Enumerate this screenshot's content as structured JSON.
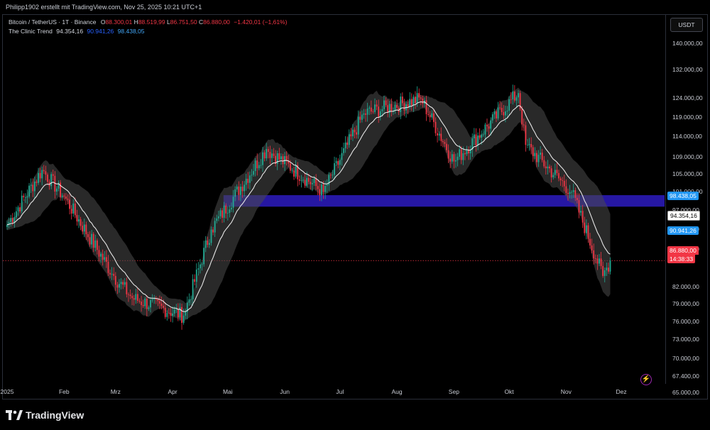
{
  "header": {
    "caption": "Philipp1902 erstellt mit TradingView.com, Nov 25, 2025 10:21 UTC+1"
  },
  "legend": {
    "symbol": "Bitcoin / TetherUS · 1T · Binance",
    "o_label": "O",
    "o_value": "88.300,01",
    "h_label": "H",
    "h_value": "88.519,99",
    "l_label": "L",
    "l_value": "86.751,50",
    "c_label": "C",
    "c_value": "86.880,00",
    "change": "−1.420,01 (−1,61%)",
    "indicator_name": "The Clinic Trend",
    "indicator_value1": "94.354,16",
    "indicator_value2": "90.941,26",
    "indicator_value3": "98.438,05"
  },
  "toolbar": {
    "currency_button": "USDT"
  },
  "price_tags": {
    "zone_level": "98.438,05",
    "trend_value": "94.354,16",
    "lower_band": "90.941,26",
    "last_price": "86.880,00",
    "countdown": "14:38:33"
  },
  "colors": {
    "up": "#22ab94",
    "down": "#f23645",
    "zone": "#2a1ab5",
    "trend_line": "#e6e6e6",
    "band_fill": "#4a4a4a",
    "tag_blue": "#2196f3",
    "tag_red": "#f23645"
  },
  "icons": {
    "alert": "lightning-icon",
    "logo": "tradingview-logo-icon"
  },
  "brand": {
    "name": "TradingView"
  },
  "chart_data": {
    "type": "candlestick",
    "title": "Bitcoin / TetherUS · 1T · Binance",
    "y_axis": {
      "scale": "log",
      "ticks": [
        "140.000,00",
        "132.000,00",
        "124.000,00",
        "119.000,00",
        "114.000,00",
        "109.000,00",
        "105.000,00",
        "101.000,00",
        "97.000,00",
        "93.000,00",
        "89.000,00",
        "82.000,00",
        "79.000,00",
        "76.000,00",
        "73.000,00",
        "70.000,00",
        "67.400,00",
        "65.000,00"
      ],
      "tick_values": [
        140000,
        132000,
        124000,
        119000,
        114000,
        109000,
        105000,
        101000,
        97000,
        93000,
        89000,
        82000,
        79000,
        76000,
        73000,
        70000,
        67400,
        65000
      ]
    },
    "x_axis": {
      "ticks": [
        "2025",
        "Feb",
        "Mrz",
        "Apr",
        "Mai",
        "Jun",
        "Jul",
        "Aug",
        "Sep",
        "Okt",
        "Nov",
        "Dez"
      ]
    },
    "zone": {
      "low": 97800,
      "high": 100300
    },
    "last_price": 86880,
    "key_closes": [
      {
        "date": "2025-01-01",
        "close": 94000
      },
      {
        "date": "2025-01-20",
        "close": 106000
      },
      {
        "date": "2025-02-01",
        "close": 100000
      },
      {
        "date": "2025-02-28",
        "close": 84000
      },
      {
        "date": "2025-03-10",
        "close": 80000
      },
      {
        "date": "2025-04-07",
        "close": 77000
      },
      {
        "date": "2025-04-22",
        "close": 93000
      },
      {
        "date": "2025-05-22",
        "close": 111000
      },
      {
        "date": "2025-06-22",
        "close": 101000
      },
      {
        "date": "2025-07-14",
        "close": 120000
      },
      {
        "date": "2025-08-14",
        "close": 124000
      },
      {
        "date": "2025-09-01",
        "close": 108000
      },
      {
        "date": "2025-10-06",
        "close": 125500
      },
      {
        "date": "2025-10-10",
        "close": 112000
      },
      {
        "date": "2025-11-04",
        "close": 101000
      },
      {
        "date": "2025-11-21",
        "close": 84000
      },
      {
        "date": "2025-11-25",
        "close": 86880
      }
    ]
  }
}
